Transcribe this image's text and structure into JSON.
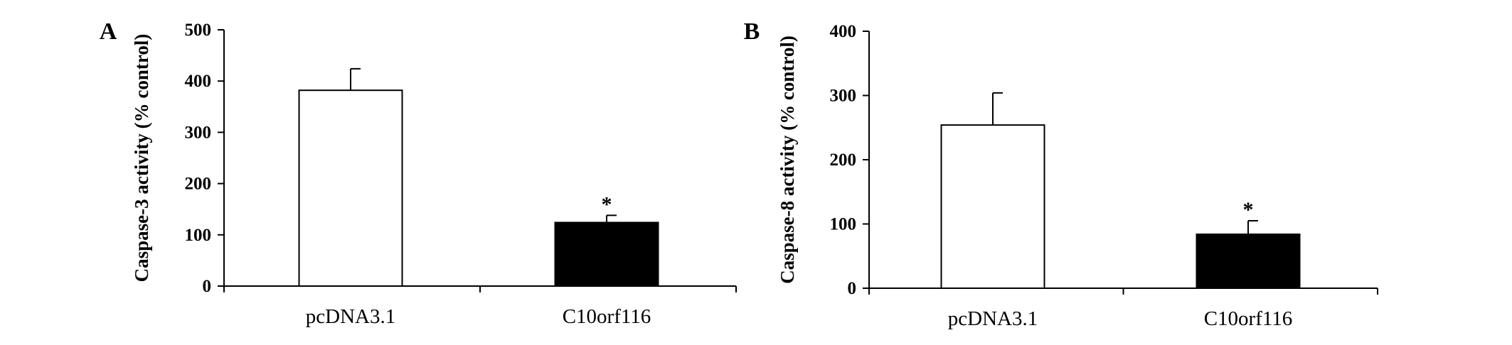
{
  "chart_data": [
    {
      "panel_label": "A",
      "type": "bar",
      "ylabel": "Caspase-3 activity (% control)",
      "ylim": [
        0,
        500
      ],
      "yticks": [
        0,
        100,
        200,
        300,
        400,
        500
      ],
      "categories": [
        "pcDNA3.1",
        "C10orf116"
      ],
      "values": [
        382,
        124
      ],
      "errors": [
        42,
        14
      ],
      "bar_colors": [
        "#ffffff",
        "#000000"
      ],
      "significance": [
        "",
        "*"
      ]
    },
    {
      "panel_label": "B",
      "type": "bar",
      "ylabel": "Caspase-8 activity (% control)",
      "ylim": [
        0,
        400
      ],
      "yticks": [
        0,
        100,
        200,
        300,
        400
      ],
      "categories": [
        "pcDNA3.1",
        "C10orf116"
      ],
      "values": [
        254,
        84
      ],
      "errors": [
        50,
        21
      ],
      "bar_colors": [
        "#ffffff",
        "#000000"
      ],
      "significance": [
        "",
        "*"
      ]
    }
  ]
}
